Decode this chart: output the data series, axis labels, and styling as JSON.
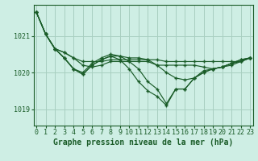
{
  "bg_color": "#ceeee4",
  "grid_color": "#a8cfc0",
  "line_color": "#1a5c28",
  "xlabel": "Graphe pression niveau de la mer (hPa)",
  "xlabel_fontsize": 7,
  "tick_fontsize": 6,
  "ylim": [
    1018.55,
    1021.85
  ],
  "xlim": [
    -0.3,
    23.3
  ],
  "yticks": [
    1019,
    1020,
    1021
  ],
  "xticks": [
    0,
    1,
    2,
    3,
    4,
    5,
    6,
    7,
    8,
    9,
    10,
    11,
    12,
    13,
    14,
    15,
    16,
    17,
    18,
    19,
    20,
    21,
    22,
    23
  ],
  "series_x": [
    [
      0,
      1,
      2,
      3,
      4,
      5,
      6,
      7,
      8,
      9,
      10,
      11,
      12,
      13,
      14,
      15,
      16,
      17,
      18,
      19,
      20,
      21,
      22,
      23
    ],
    [
      0,
      1,
      2,
      3,
      4,
      5,
      6,
      7,
      8,
      9,
      10,
      11,
      12,
      13,
      14,
      15,
      16,
      17,
      18,
      19,
      20,
      21,
      22,
      23
    ],
    [
      0,
      1,
      2,
      3,
      4,
      5,
      6,
      7,
      8,
      9,
      10,
      11,
      12,
      13,
      14,
      15,
      16,
      17,
      18,
      19,
      20,
      21,
      22,
      23
    ],
    [
      0,
      1,
      2,
      3,
      4,
      5,
      6,
      7,
      8,
      9,
      10,
      11,
      12,
      13,
      14,
      15,
      16,
      17,
      18,
      19,
      20,
      21,
      22,
      23
    ],
    [
      0,
      1,
      2,
      3,
      4,
      5,
      6,
      7,
      8,
      9,
      10,
      11,
      12,
      13,
      14,
      15,
      16,
      17,
      18,
      19,
      20,
      21,
      22,
      23
    ]
  ],
  "series": [
    [
      1021.65,
      1021.05,
      1020.65,
      1020.55,
      1020.4,
      1020.3,
      1020.3,
      1020.3,
      1020.35,
      1020.35,
      1020.35,
      1020.35,
      1020.35,
      1020.35,
      1020.3,
      1020.3,
      1020.3,
      1020.3,
      1020.3,
      1020.3,
      1020.3,
      1020.3,
      1020.3,
      1020.4
    ],
    [
      1021.65,
      1021.05,
      1020.65,
      1020.55,
      1020.4,
      1020.2,
      1020.15,
      1020.2,
      1020.3,
      1020.3,
      1020.3,
      1020.3,
      1020.3,
      1020.2,
      1020.2,
      1020.2,
      1020.2,
      1020.2,
      1020.15,
      1020.1,
      1020.15,
      1020.2,
      1020.3,
      1020.4
    ],
    [
      1021.65,
      1021.05,
      1020.65,
      1020.4,
      1020.1,
      1020.0,
      1020.25,
      1020.4,
      1020.5,
      1020.45,
      1020.4,
      1020.4,
      1020.35,
      1020.2,
      1020.0,
      1019.85,
      1019.8,
      1019.85,
      1020.05,
      1020.1,
      1020.15,
      1020.25,
      1020.3,
      1020.4
    ],
    [
      1021.65,
      1021.05,
      1020.65,
      1020.4,
      1020.1,
      1019.95,
      1020.2,
      1020.35,
      1020.45,
      1020.45,
      1020.3,
      1020.1,
      1019.75,
      1019.55,
      1019.15,
      1019.55,
      1019.55,
      1019.85,
      1020.0,
      1020.1,
      1020.15,
      1020.25,
      1020.35,
      1020.4
    ],
    [
      1021.65,
      1021.05,
      1020.65,
      1020.4,
      1020.1,
      1019.95,
      1020.2,
      1020.35,
      1020.45,
      1020.35,
      1020.1,
      1019.75,
      1019.5,
      1019.35,
      1019.1,
      1019.55,
      1019.55,
      1019.85,
      1020.0,
      1020.1,
      1020.15,
      1020.25,
      1020.35,
      1020.4
    ]
  ]
}
